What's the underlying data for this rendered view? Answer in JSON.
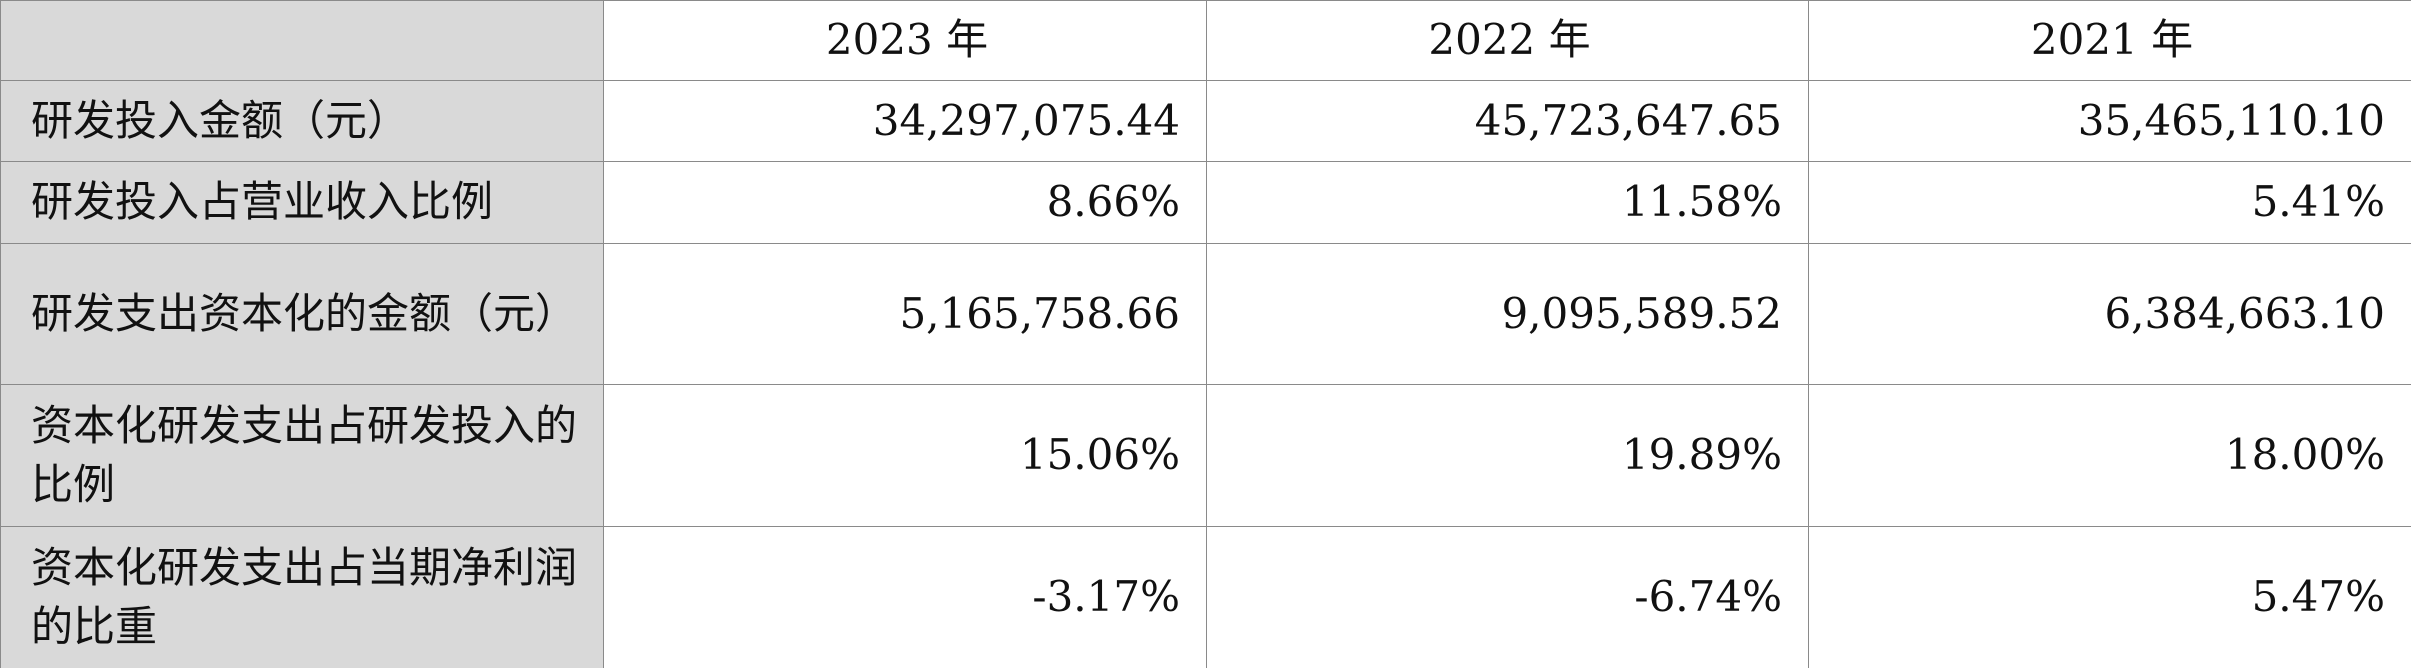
{
  "table": {
    "header": [
      "",
      "2023 年",
      "2022 年",
      "2021 年"
    ],
    "rows": [
      [
        "研发投入金额（元）",
        "34,297,075.44",
        "45,723,647.65",
        "35,465,110.10"
      ],
      [
        "研发投入占营业收入比例",
        "8.66%",
        "11.58%",
        "5.41%"
      ],
      [
        "研发支出资本化的金额（元）",
        "5,165,758.66",
        "9,095,589.52",
        "6,384,663.10"
      ],
      [
        "资本化研发支出占研发投入的比例",
        "15.06%",
        "19.89%",
        "18.00%"
      ],
      [
        "资本化研发支出占当期净利润的比重",
        "-3.17%",
        "-6.74%",
        "5.47%"
      ]
    ]
  }
}
